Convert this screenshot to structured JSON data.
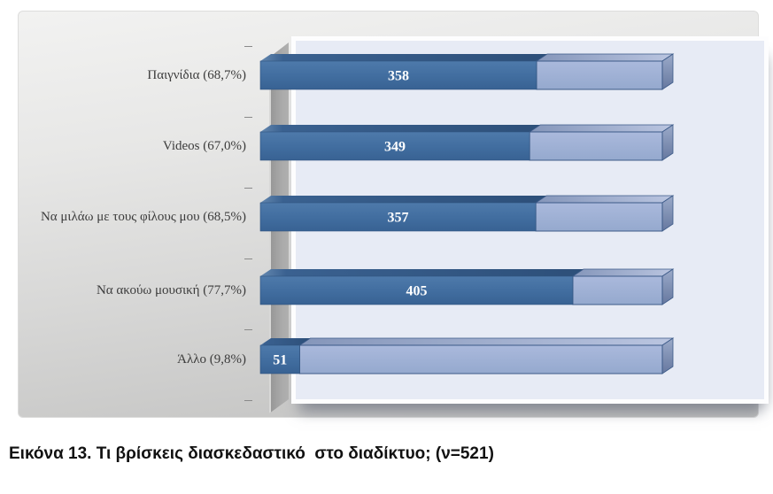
{
  "figure": {
    "caption": "Εικόνα 13. Τι βρίσκεις διασκεδαστικό  στο διαδίκτυο; (ν=521)"
  },
  "chart_data": {
    "type": "bar",
    "orientation": "horizontal",
    "title": "",
    "n_total": 521,
    "sample_size_label": "ν=521",
    "categories": [
      "Παιγνίδια (68,7%)",
      "Videos (67,0%)",
      "Να μιλάω με τους φίλους μου (68,5%)",
      "Να ακούω μουσική (77,7%)",
      "Άλλο (9,8%)"
    ],
    "values": [
      358,
      349,
      357,
      405,
      51
    ],
    "percent_labels": [
      "68,7%",
      "67,0%",
      "68,5%",
      "77,7%",
      "9,8%"
    ],
    "bar_value_labels": [
      "358",
      "349",
      "357",
      "405",
      "51"
    ],
    "series": [
      {
        "name": "responses",
        "values": [
          358,
          349,
          357,
          405,
          51
        ]
      },
      {
        "name": "remainder_to_521",
        "values": [
          163,
          172,
          164,
          116,
          470
        ]
      }
    ],
    "xlim": [
      0,
      521
    ],
    "grid": false,
    "legend": "none",
    "value_labels_shown": true,
    "effect": "3d-horizontal-stacked-bars",
    "colors": {
      "value_segment": "#3f6b9d",
      "remainder_segment": "#9fb2d6",
      "segment_outline": "#3c5a88",
      "plot_background": "#e7ebf5",
      "plot_border": "#fdfdfe",
      "panel_background_top": "#f2f2f1",
      "panel_background_bottom": "#c0c0bf",
      "axis_wall": "#a6a6a6",
      "value_label_text": "#ffffff",
      "category_label_text": "#3c3c3c",
      "caption_text": "#111111"
    }
  }
}
